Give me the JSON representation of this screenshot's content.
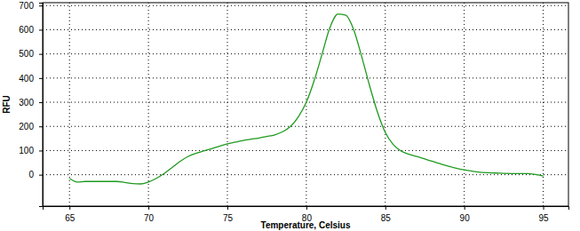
{
  "chart_data": {
    "type": "line",
    "x_label": "Temperature, Celsius",
    "y_label": "RFU",
    "x": [
      65,
      65.5,
      66,
      67,
      68,
      68.5,
      69,
      69.5,
      70,
      70.5,
      71,
      71.5,
      72,
      72.5,
      73,
      73.5,
      74,
      74.5,
      75,
      75.5,
      76,
      76.5,
      77,
      77.5,
      78,
      78.5,
      79,
      79.5,
      80,
      80.5,
      81,
      81.5,
      82,
      82.5,
      83,
      83.5,
      84,
      84.5,
      85,
      85.5,
      86,
      86.5,
      87,
      87.5,
      88,
      88.5,
      89,
      89.5,
      90,
      90.5,
      91,
      92,
      93,
      94,
      95
    ],
    "values": [
      -15,
      -30,
      -28,
      -28,
      -28,
      -32,
      -37,
      -38,
      -30,
      -15,
      5,
      30,
      55,
      75,
      88,
      98,
      108,
      118,
      128,
      135,
      142,
      147,
      152,
      158,
      165,
      178,
      200,
      240,
      300,
      390,
      500,
      610,
      665,
      660,
      600,
      490,
      370,
      260,
      175,
      125,
      98,
      85,
      75,
      65,
      55,
      45,
      35,
      27,
      20,
      15,
      10,
      7,
      5,
      5,
      -5
    ],
    "color": "#1e9a1e",
    "xlim": [
      63.3,
      96.6
    ],
    "ylim": [
      -130,
      712
    ],
    "xticks": [
      65,
      70,
      75,
      80,
      85,
      90,
      95
    ],
    "yticks": [
      0,
      100,
      200,
      300,
      400,
      500,
      600,
      700
    ],
    "grid": true
  }
}
